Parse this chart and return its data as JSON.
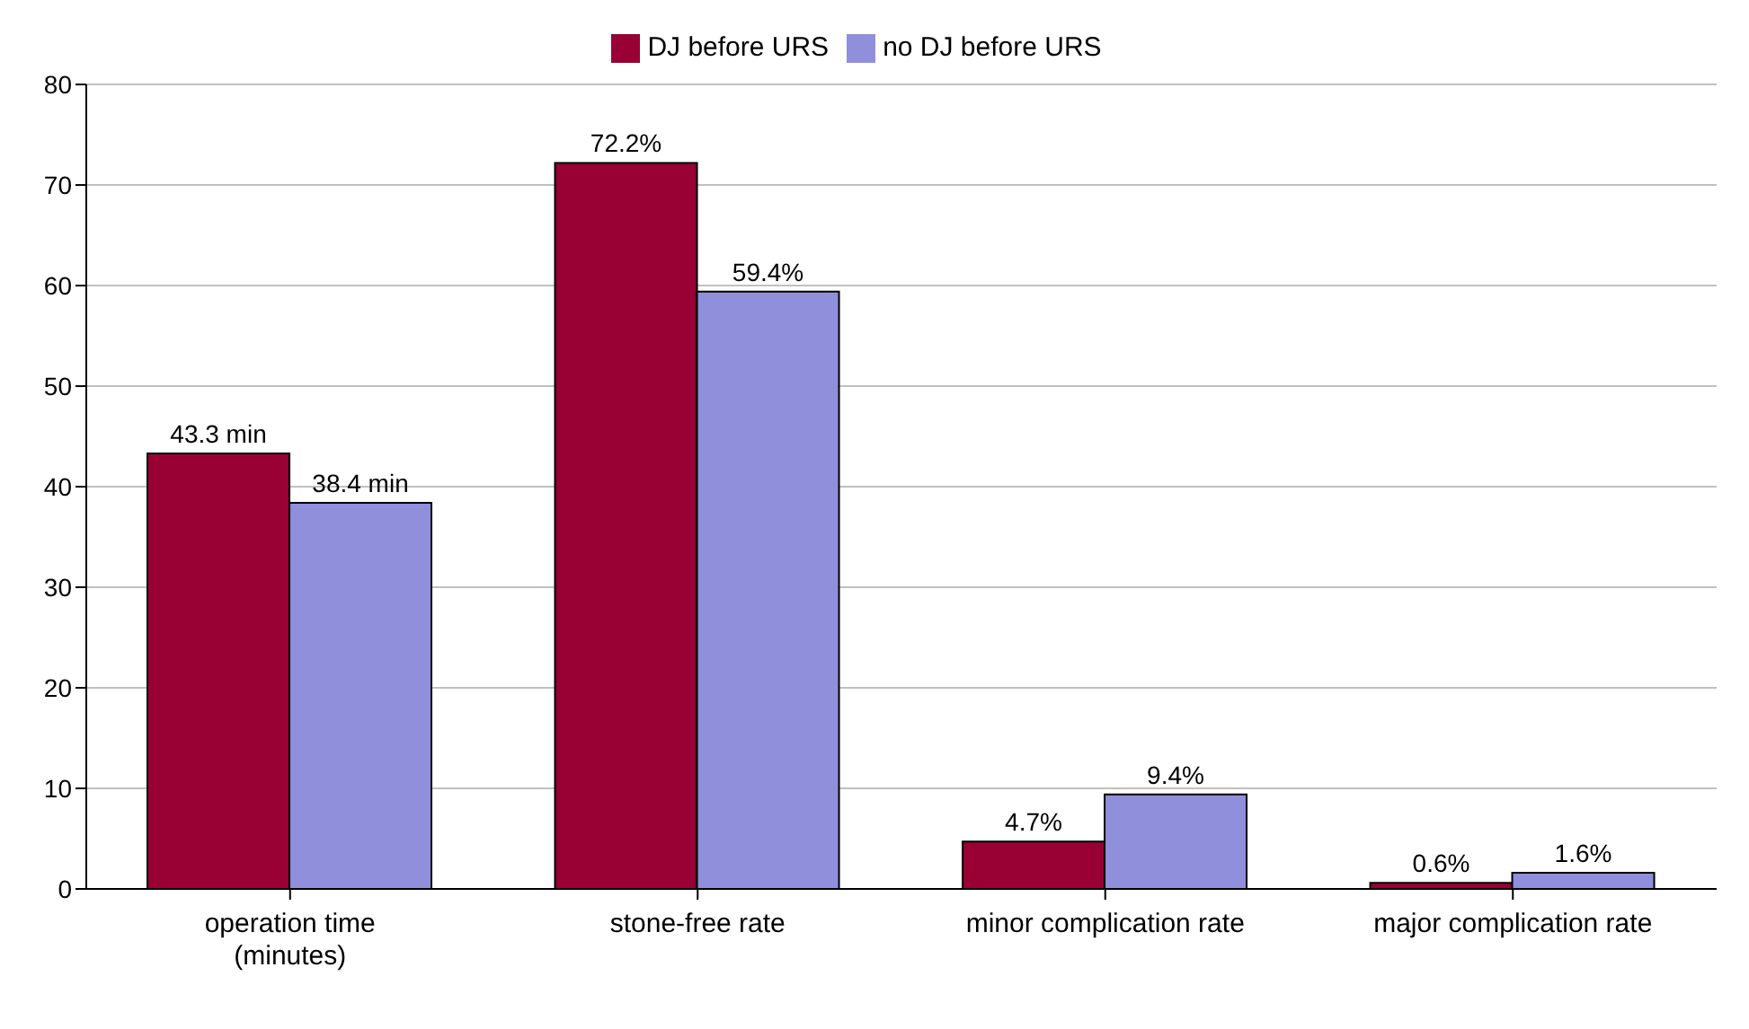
{
  "chart_data": {
    "type": "bar",
    "categories": [
      "operation time\n(minutes)",
      "stone-free rate",
      "minor complication rate",
      "major complication rate"
    ],
    "series": [
      {
        "name": "DJ before URS",
        "color": "#990033",
        "values": [
          43.3,
          72.2,
          4.7,
          0.6
        ],
        "value_labels": [
          "43.3 min",
          "72.2%",
          "4.7%",
          "0.6%"
        ]
      },
      {
        "name": "no DJ before URS",
        "color": "#8f8fdb",
        "values": [
          38.4,
          59.4,
          9.4,
          1.6
        ],
        "value_labels": [
          "38.4 min",
          "59.4%",
          "9.4%",
          "1.6%"
        ]
      }
    ],
    "ylim": [
      0,
      80
    ],
    "yticks": [
      0,
      10,
      20,
      30,
      40,
      50,
      60,
      70,
      80
    ],
    "grid": "y",
    "legend": "top"
  }
}
